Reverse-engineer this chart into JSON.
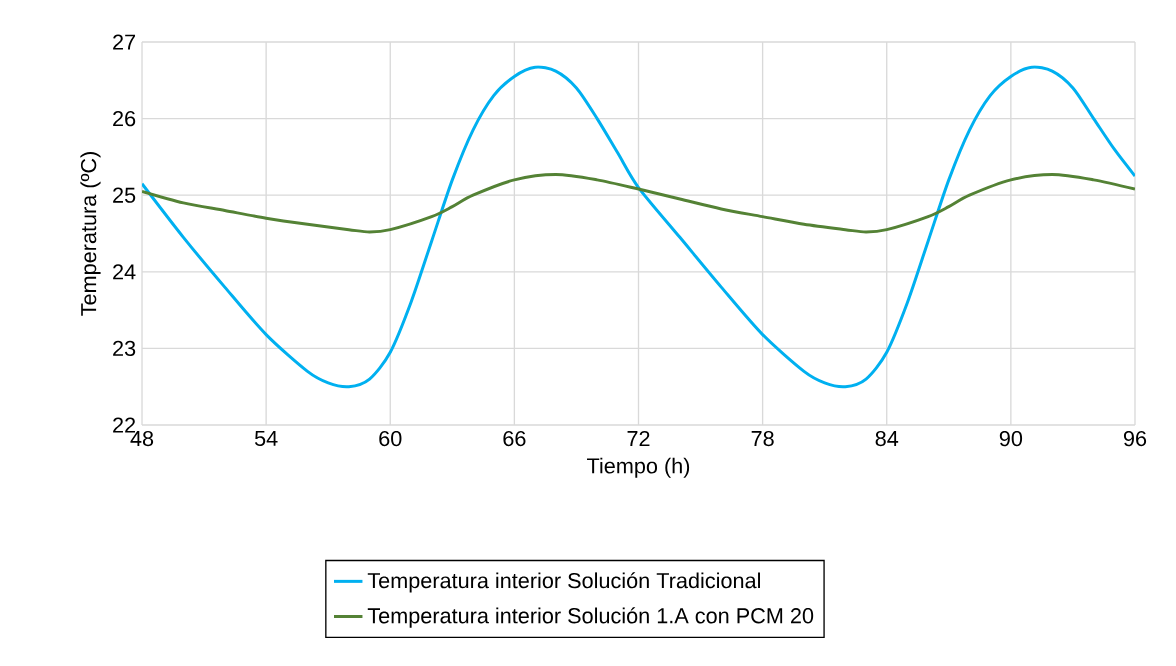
{
  "chart_data": {
    "type": "line",
    "xlabel": "Tiempo (h)",
    "ylabel": "Temperatura (ºC)",
    "xlim": [
      48,
      96
    ],
    "ylim": [
      22,
      27
    ],
    "xticks": [
      48,
      54,
      60,
      66,
      72,
      78,
      84,
      90,
      96
    ],
    "yticks": [
      22,
      23,
      24,
      25,
      26,
      27
    ],
    "grid": true,
    "legend": "bottom",
    "marker": "none",
    "line_style": "solid",
    "series": [
      {
        "name": "Temperatura interior Solución Tradicional",
        "color": "#00b0f0",
        "x": [
          48,
          50,
          52,
          54,
          56,
          57,
          58,
          59,
          60,
          61,
          62,
          63,
          64,
          65,
          66,
          67,
          68,
          69,
          70,
          71,
          72,
          74,
          76,
          78,
          80,
          81,
          82,
          83,
          84,
          85,
          86,
          87,
          88,
          89,
          90,
          91,
          92,
          93,
          94,
          95,
          96
        ],
        "values": [
          25.15,
          24.45,
          23.8,
          23.18,
          22.7,
          22.55,
          22.5,
          22.6,
          22.95,
          23.6,
          24.4,
          25.2,
          25.85,
          26.3,
          26.55,
          26.67,
          26.62,
          26.4,
          26.0,
          25.55,
          25.1,
          24.45,
          23.8,
          23.18,
          22.7,
          22.55,
          22.5,
          22.6,
          22.95,
          23.6,
          24.4,
          25.2,
          25.85,
          26.3,
          26.55,
          26.67,
          26.62,
          26.4,
          26.0,
          25.6,
          25.25
        ]
      },
      {
        "name": "Temperatura interior Solución 1.A con PCM 20",
        "color": "#548235",
        "x": [
          48,
          50,
          52,
          54,
          56,
          58,
          59,
          60,
          62,
          63,
          64,
          66,
          68,
          70,
          72,
          74,
          76,
          78,
          80,
          82,
          83,
          84,
          86,
          87,
          88,
          90,
          92,
          94,
          96
        ],
        "values": [
          25.05,
          24.9,
          24.8,
          24.7,
          24.62,
          24.55,
          24.52,
          24.55,
          24.72,
          24.85,
          25.0,
          25.2,
          25.27,
          25.2,
          25.08,
          24.95,
          24.82,
          24.72,
          24.62,
          24.55,
          24.52,
          24.55,
          24.72,
          24.85,
          25.0,
          25.2,
          25.27,
          25.2,
          25.08
        ]
      }
    ]
  }
}
